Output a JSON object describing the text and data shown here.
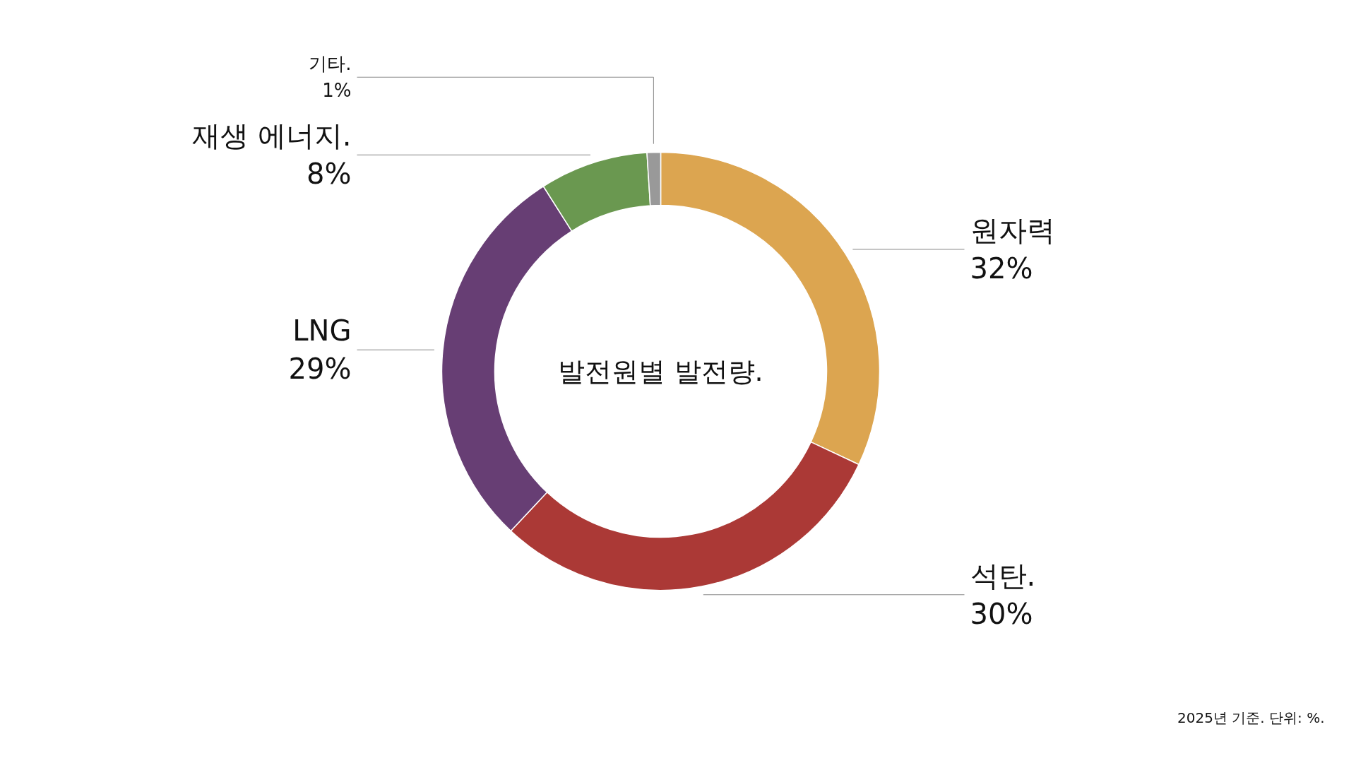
{
  "chart_data": {
    "type": "donut",
    "title": "발전원별 발전량.",
    "categories": [
      "원자력",
      "석탄.",
      "LNG",
      "재생 에너지.",
      "기타."
    ],
    "values": [
      32,
      30,
      29,
      8,
      1
    ],
    "value_labels": [
      "32%",
      "30%",
      "29%",
      "8%",
      "1%"
    ],
    "colors": [
      "#dca550",
      "#ab3936",
      "#673e74",
      "#6a9850",
      "#999999"
    ],
    "legend": false,
    "annotations": [
      "2025년 기준. 단위: %."
    ]
  }
}
